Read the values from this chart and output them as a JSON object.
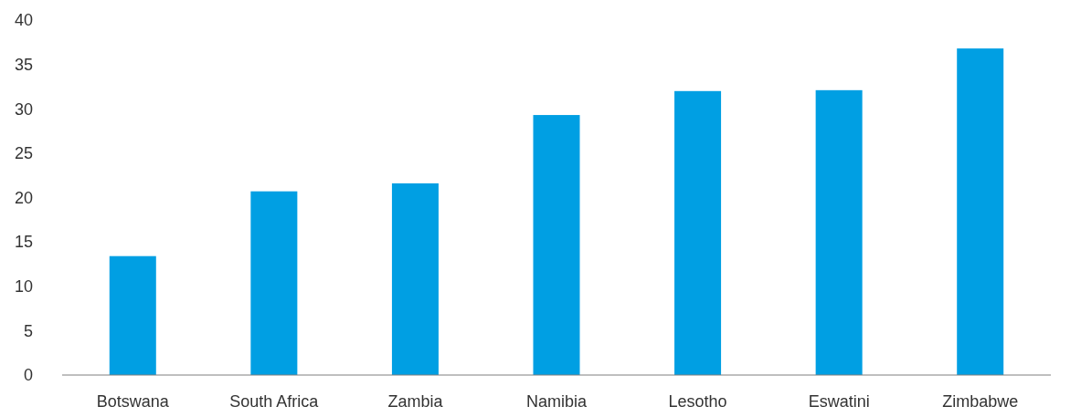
{
  "chart_data": {
    "type": "bar",
    "categories": [
      "Botswana",
      "South Africa",
      "Zambia",
      "Namibia",
      "Lesotho",
      "Eswatini",
      "Zimbabwe"
    ],
    "values": [
      13.4,
      20.7,
      21.6,
      29.3,
      32.0,
      32.1,
      36.8
    ],
    "color": "#009fe3",
    "ylim": [
      0,
      40
    ],
    "yticks": [
      0,
      5,
      10,
      15,
      20,
      25,
      30,
      35,
      40
    ],
    "grid": false
  }
}
